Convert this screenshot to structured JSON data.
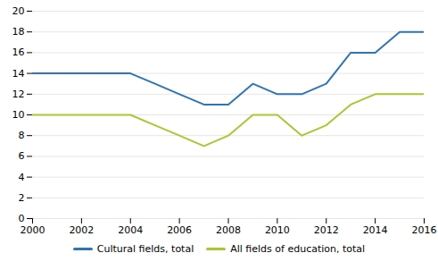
{
  "chart_data": {
    "type": "line",
    "x": [
      2000,
      2001,
      2002,
      2003,
      2004,
      2005,
      2006,
      2007,
      2008,
      2009,
      2010,
      2011,
      2012,
      2013,
      2014,
      2015,
      2016
    ],
    "series": [
      {
        "name": "Cultural fields, total",
        "color": "#2E75B6",
        "values": [
          14,
          14,
          14,
          14,
          14,
          13,
          12,
          11,
          11,
          13,
          12,
          12,
          13,
          16,
          16,
          18,
          18
        ]
      },
      {
        "name": "All fields of education, total",
        "color": "#A8C832",
        "values": [
          10,
          10,
          10,
          10,
          10,
          9,
          8,
          7,
          8,
          10,
          10,
          8,
          9,
          11,
          12,
          12,
          12
        ]
      }
    ],
    "xlim": [
      2000,
      2016
    ],
    "xticks": [
      2000,
      2002,
      2004,
      2006,
      2008,
      2010,
      2012,
      2014,
      2016
    ],
    "ylim": [
      0,
      20
    ],
    "yticks": [
      0,
      2,
      4,
      6,
      8,
      10,
      12,
      14,
      16,
      18,
      20
    ],
    "grid": true,
    "legend": "bottom"
  }
}
